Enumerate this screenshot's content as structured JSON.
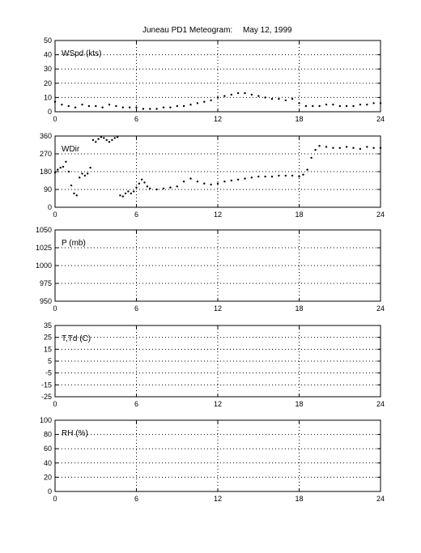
{
  "title": "Juneau PD1 Meteogram:",
  "date": "May 12, 1999",
  "colors": {
    "axes": "#000000",
    "grid": "#000000",
    "data": "#000000",
    "background": "#ffffff"
  },
  "chart_data": [
    {
      "type": "scatter",
      "label": "WSpd (kts)",
      "xlim": [
        0,
        24
      ],
      "ylim": [
        0,
        50
      ],
      "xticks": [
        0,
        6,
        12,
        18,
        24
      ],
      "yticks": [
        0,
        10,
        20,
        30,
        40,
        50
      ],
      "grid": true,
      "series": [
        {
          "x": [
            0,
            0.5,
            1,
            1.5,
            2,
            2.5,
            3,
            3.5,
            4,
            4.5,
            5,
            5.5,
            6,
            6.5,
            7,
            7.5,
            8,
            8.5,
            9,
            9.5,
            10,
            10.5,
            11,
            11.5,
            12,
            12.5,
            13,
            13.5,
            14,
            14.5,
            15,
            15.5,
            16,
            16.5,
            17,
            17.5,
            18,
            18.5,
            19,
            19.5,
            20,
            20.5,
            21,
            21.5,
            22,
            22.5,
            23,
            23.5,
            24
          ],
          "y": [
            7,
            5,
            4,
            3,
            5,
            4,
            4,
            3,
            5,
            4,
            3,
            3,
            3,
            2,
            2,
            2,
            3,
            3,
            4,
            4,
            5,
            6,
            7,
            8,
            10,
            11,
            12,
            13,
            13,
            12,
            11,
            10,
            9,
            9,
            8,
            9,
            6,
            4,
            4,
            4,
            5,
            5,
            4,
            4,
            4,
            5,
            5,
            6,
            6
          ]
        }
      ]
    },
    {
      "type": "scatter",
      "label": "WDir",
      "xlim": [
        0,
        24
      ],
      "ylim": [
        0,
        360
      ],
      "xticks": [
        0,
        6,
        12,
        18,
        24
      ],
      "yticks": [
        0,
        90,
        180,
        270,
        360
      ],
      "grid": true,
      "series": [
        {
          "x": [
            0,
            0.2,
            0.4,
            0.6,
            0.8,
            1.0,
            1.2,
            1.4,
            1.6,
            1.8,
            2.0,
            2.2,
            2.4,
            2.6,
            2.8,
            3.0,
            3.2,
            3.4,
            3.6,
            3.8,
            4.0,
            4.2,
            4.4,
            4.6,
            4.8,
            5.0,
            5.2,
            5.4,
            5.6,
            5.8,
            6.0,
            6.2,
            6.4,
            6.6,
            6.8,
            7.0,
            7.5,
            8.0,
            8.5,
            9.0,
            9.5,
            10.0,
            10.5,
            11.0,
            11.5,
            12.0,
            12.5,
            13.0,
            13.5,
            14.0,
            14.5,
            15.0,
            15.5,
            16.0,
            16.5,
            17.0,
            17.5,
            18.0,
            18.3,
            18.6,
            18.9,
            19.2,
            19.5,
            20.0,
            20.5,
            21.0,
            21.5,
            22.0,
            22.5,
            23.0,
            23.5,
            24.0
          ],
          "y": [
            175,
            190,
            200,
            205,
            230,
            180,
            110,
            70,
            60,
            150,
            170,
            160,
            170,
            200,
            340,
            330,
            345,
            355,
            350,
            340,
            330,
            340,
            350,
            355,
            60,
            55,
            70,
            80,
            70,
            80,
            100,
            120,
            140,
            125,
            105,
            95,
            90,
            95,
            100,
            105,
            130,
            145,
            130,
            120,
            115,
            120,
            130,
            135,
            140,
            145,
            150,
            155,
            155,
            155,
            160,
            160,
            160,
            155,
            165,
            190,
            250,
            290,
            310,
            305,
            300,
            300,
            305,
            300,
            295,
            305,
            300,
            300
          ]
        }
      ]
    },
    {
      "type": "line",
      "label": "P (mb)",
      "xlim": [
        0,
        24
      ],
      "ylim": [
        950,
        1050
      ],
      "xticks": [
        0,
        6,
        12,
        18,
        24
      ],
      "yticks": [
        950,
        975,
        1000,
        1025,
        1050
      ],
      "grid": true,
      "series": []
    },
    {
      "type": "line",
      "label": "T,Td (C)",
      "xlim": [
        0,
        24
      ],
      "ylim": [
        -25,
        35
      ],
      "xticks": [
        0,
        6,
        12,
        18,
        24
      ],
      "yticks": [
        -25,
        -15,
        -5,
        5,
        15,
        25,
        35
      ],
      "grid": true,
      "series": []
    },
    {
      "type": "line",
      "label": "RH (%)",
      "xlim": [
        0,
        24
      ],
      "ylim": [
        0,
        100
      ],
      "xticks": [
        0,
        6,
        12,
        18,
        24
      ],
      "yticks": [
        0,
        20,
        40,
        60,
        80,
        100
      ],
      "grid": true,
      "series": []
    }
  ]
}
